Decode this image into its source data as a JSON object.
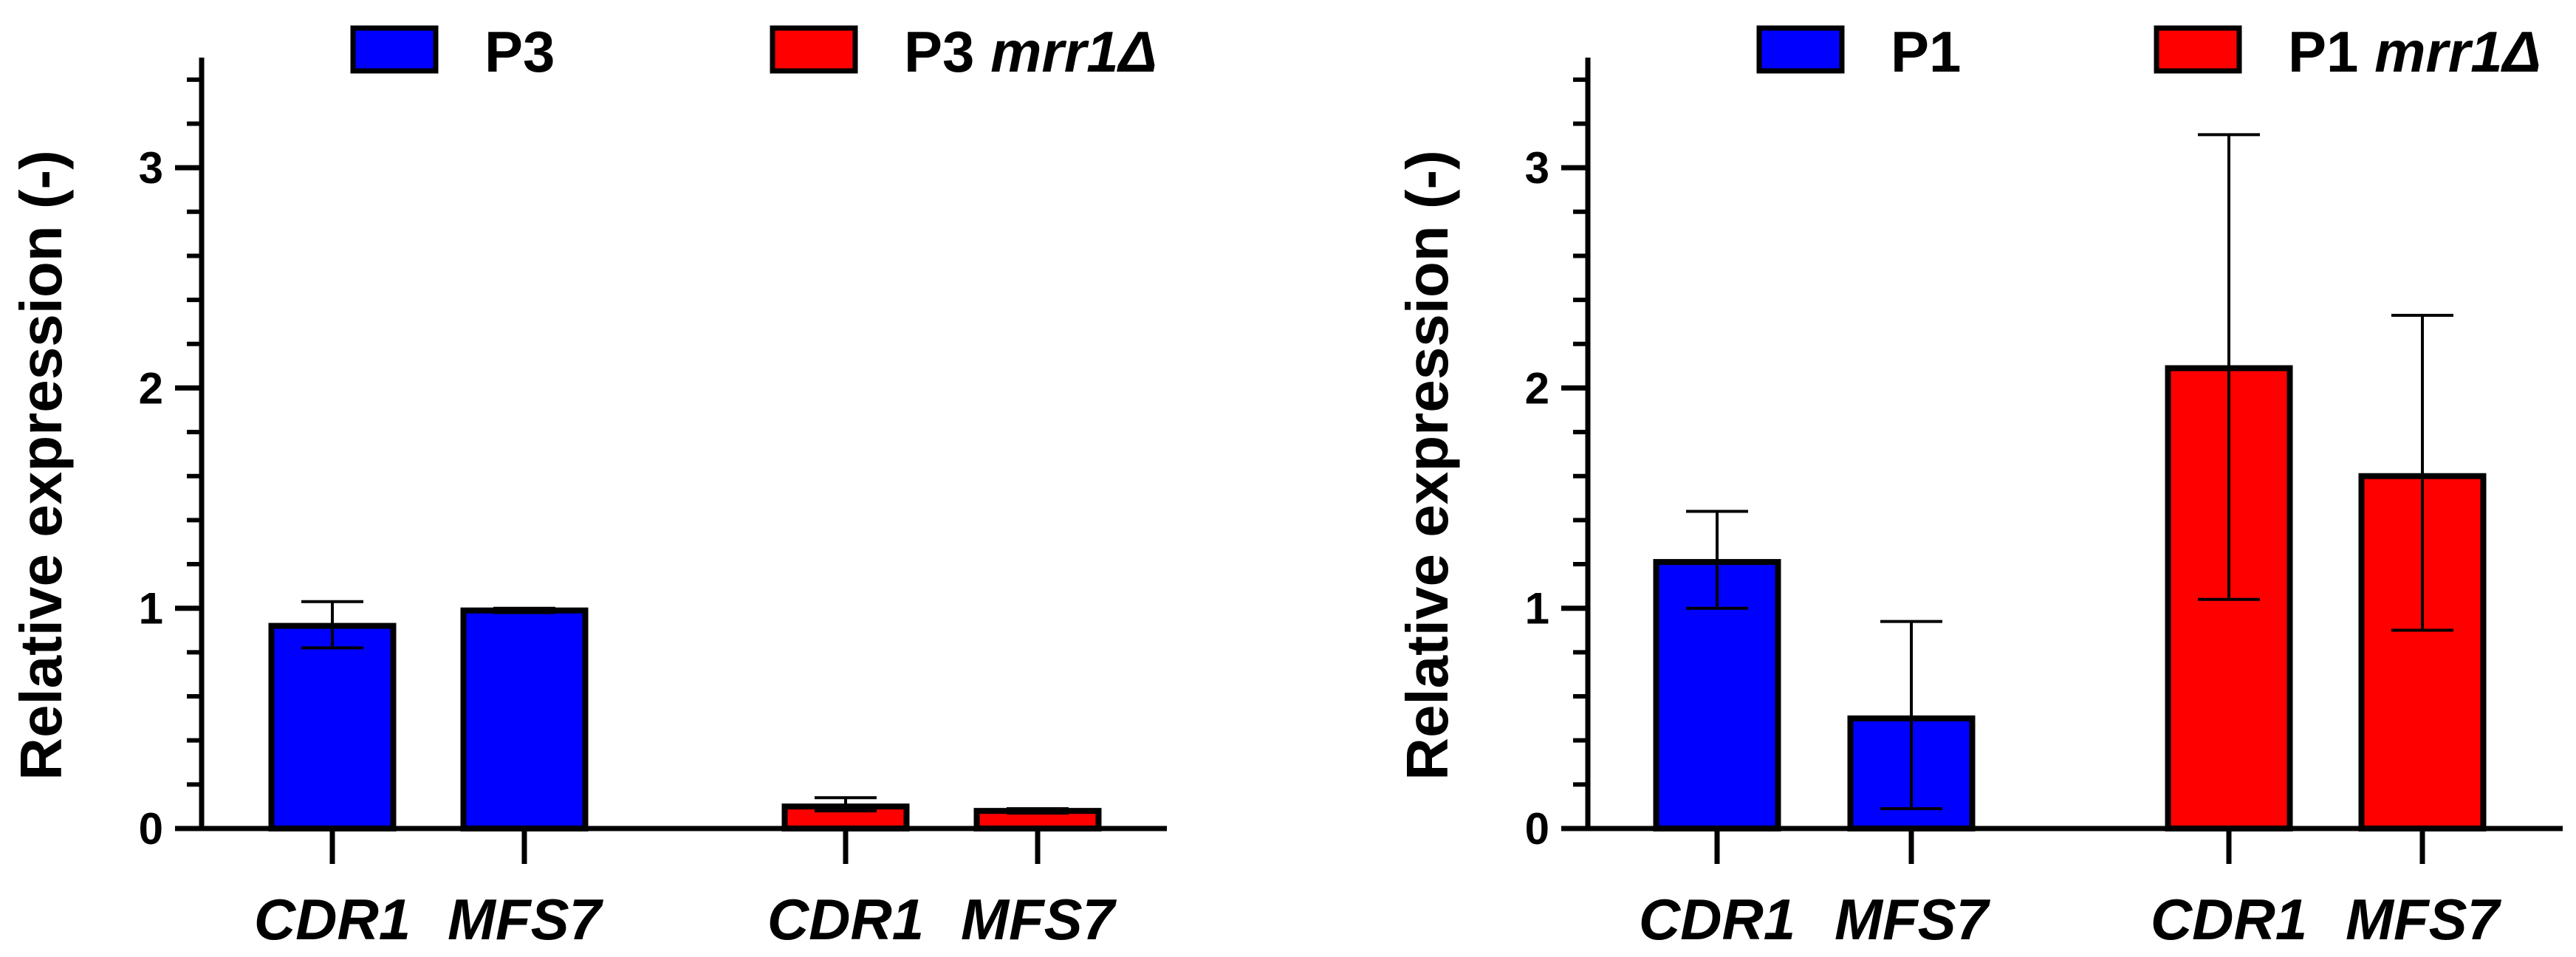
{
  "chart_data": [
    {
      "type": "bar",
      "ylabel": "Relative expression (-)",
      "ylim": [
        0,
        3.5
      ],
      "yticks": [
        "0",
        "1",
        "2",
        "3"
      ],
      "grid": false,
      "legend_position": "top",
      "legend": [
        {
          "name": "P3",
          "color": "#0000ff"
        },
        {
          "name": "P3",
          "name_italic": "mrr1Δ",
          "color": "#ff0000"
        }
      ],
      "bars": [
        {
          "category": "CDR1",
          "series": "P3",
          "value": 0.92,
          "err_low": 0.82,
          "err_high": 1.03,
          "color": "#0000ff"
        },
        {
          "category": "MFS7",
          "series": "P3",
          "value": 0.99,
          "err_low": 0.98,
          "err_high": 1.0,
          "color": "#0000ff"
        },
        {
          "category": "CDR1",
          "series": "P3 mrr1Δ",
          "value": 0.1,
          "err_low": 0.08,
          "err_high": 0.14,
          "color": "#ff0000"
        },
        {
          "category": "MFS7",
          "series": "P3 mrr1Δ",
          "value": 0.08,
          "err_low": 0.07,
          "err_high": 0.09,
          "color": "#ff0000"
        }
      ]
    },
    {
      "type": "bar",
      "ylabel": "Relative expression (-)",
      "ylim": [
        0,
        3.5
      ],
      "yticks": [
        "0",
        "1",
        "2",
        "3"
      ],
      "grid": false,
      "legend_position": "top",
      "legend": [
        {
          "name": "P1",
          "color": "#0000ff"
        },
        {
          "name": "P1",
          "name_italic": "mrr1Δ",
          "color": "#ff0000"
        }
      ],
      "bars": [
        {
          "category": "CDR1",
          "series": "P1",
          "value": 1.21,
          "err_low": 1.0,
          "err_high": 1.44,
          "color": "#0000ff"
        },
        {
          "category": "MFS7",
          "series": "P1",
          "value": 0.5,
          "err_low": 0.09,
          "err_high": 0.94,
          "color": "#0000ff"
        },
        {
          "category": "CDR1",
          "series": "P1 mrr1Δ",
          "value": 2.09,
          "err_low": 1.04,
          "err_high": 3.15,
          "color": "#ff0000"
        },
        {
          "category": "MFS7",
          "series": "P1 mrr1Δ",
          "value": 1.6,
          "err_low": 0.9,
          "err_high": 2.33,
          "color": "#ff0000"
        }
      ]
    }
  ]
}
